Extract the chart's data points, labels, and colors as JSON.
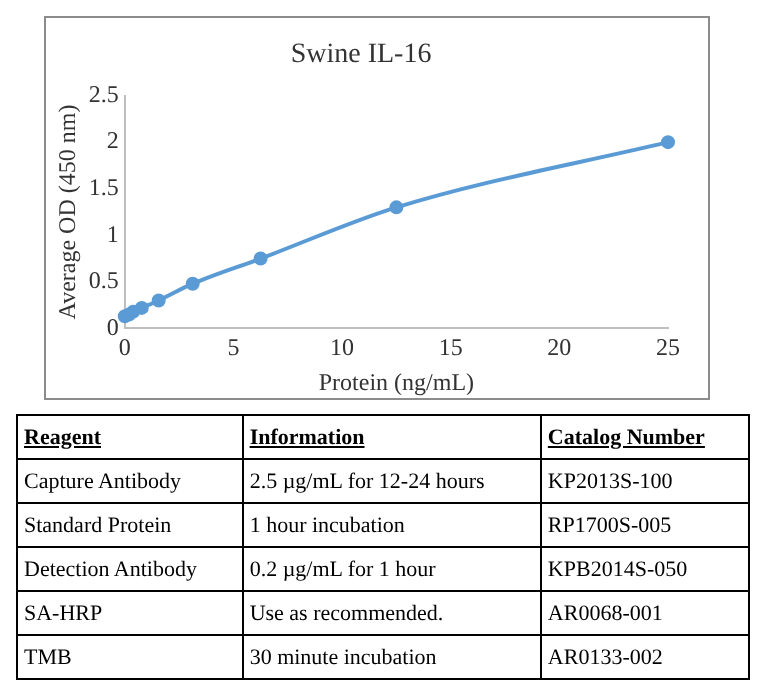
{
  "chart_data": [
    {
      "type": "line",
      "title": "Swine IL-16",
      "xlabel": "Protein (ng/mL)",
      "ylabel": "Average OD (450 nm)",
      "series": [
        {
          "color": "#5b9bd5",
          "x": [
            0,
            0.195,
            0.39,
            0.78,
            1.56,
            3.125,
            6.25,
            12.5,
            25
          ],
          "values": [
            0.13,
            0.15,
            0.18,
            0.22,
            0.3,
            0.48,
            0.75,
            1.3,
            2.0
          ]
        }
      ],
      "xlim": [
        0,
        25
      ],
      "xticks": [
        0,
        5,
        10,
        15,
        20,
        25
      ],
      "ylim": [
        0,
        2.5
      ],
      "yticks": [
        0,
        0.5,
        1,
        1.5,
        2,
        2.5
      ],
      "grid": false,
      "legend": false,
      "marker": "circle",
      "line_style": "solid"
    },
    {
      "type": "other",
      "annotations": [
        "Reagent",
        "Information",
        "Catalog Number",
        "Capture Antibody",
        "2.5 µg/mL for 12-24 hours",
        "KP2013S-100",
        "Standard Protein",
        "1 hour incubation",
        "RP1700S-005",
        "Detection Antibody",
        "0.2 µg/mL for 1 hour",
        "KPB2014S-050",
        "SA-HRP",
        "Use as recommended.",
        "AR0068-001",
        "TMB",
        "30 minute incubation",
        "AR0133-002"
      ]
    }
  ]
}
